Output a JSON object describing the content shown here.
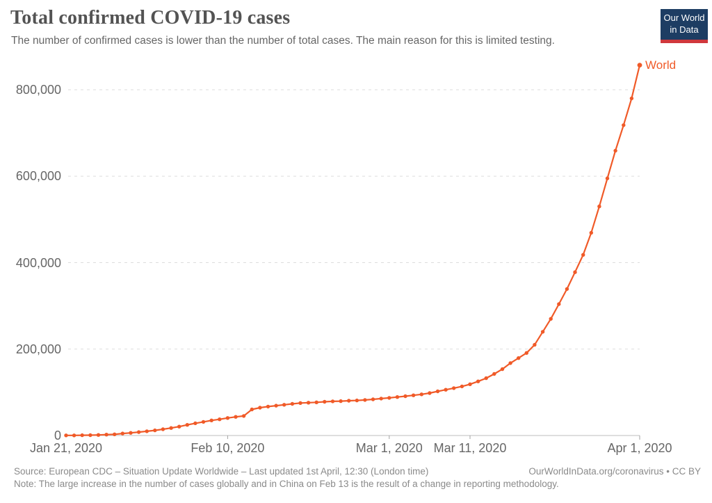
{
  "header": {
    "title": "Total confirmed COVID-19 cases",
    "subtitle": "The number of confirmed cases is lower than the number of total cases. The main reason for this is limited testing.",
    "logo": {
      "line1": "Our World",
      "line2": "in Data",
      "bg_color": "#1d3d63",
      "bar_color": "#d0383c"
    }
  },
  "chart_data": {
    "type": "line",
    "title": "Total confirmed COVID-19 cases",
    "xlabel": "",
    "ylabel": "",
    "ylim": [
      0,
      800000
    ],
    "grid": true,
    "legend_position": "end-of-line",
    "y_ticks": [
      {
        "value": 0,
        "label": "0"
      },
      {
        "value": 200000,
        "label": "200,000"
      },
      {
        "value": 400000,
        "label": "400,000"
      },
      {
        "value": 600000,
        "label": "600,000"
      },
      {
        "value": 800000,
        "label": "800,000"
      }
    ],
    "x_ticks": [
      {
        "index": 0,
        "label": "Jan 21, 2020"
      },
      {
        "index": 20,
        "label": "Feb 10, 2020"
      },
      {
        "index": 40,
        "label": "Mar 1, 2020"
      },
      {
        "index": 50,
        "label": "Mar 11, 2020"
      },
      {
        "index": 71,
        "label": "Apr 1, 2020"
      }
    ],
    "x": [
      "Jan 21",
      "Jan 22",
      "Jan 23",
      "Jan 24",
      "Jan 25",
      "Jan 26",
      "Jan 27",
      "Jan 28",
      "Jan 29",
      "Jan 30",
      "Jan 31",
      "Feb 1",
      "Feb 2",
      "Feb 3",
      "Feb 4",
      "Feb 5",
      "Feb 6",
      "Feb 7",
      "Feb 8",
      "Feb 9",
      "Feb 10",
      "Feb 11",
      "Feb 12",
      "Feb 13",
      "Feb 14",
      "Feb 15",
      "Feb 16",
      "Feb 17",
      "Feb 18",
      "Feb 19",
      "Feb 20",
      "Feb 21",
      "Feb 22",
      "Feb 23",
      "Feb 24",
      "Feb 25",
      "Feb 26",
      "Feb 27",
      "Feb 28",
      "Feb 29",
      "Mar 1",
      "Mar 2",
      "Mar 3",
      "Mar 4",
      "Mar 5",
      "Mar 6",
      "Mar 7",
      "Mar 8",
      "Mar 9",
      "Mar 10",
      "Mar 11",
      "Mar 12",
      "Mar 13",
      "Mar 14",
      "Mar 15",
      "Mar 16",
      "Mar 17",
      "Mar 18",
      "Mar 19",
      "Mar 20",
      "Mar 21",
      "Mar 22",
      "Mar 23",
      "Mar 24",
      "Mar 25",
      "Mar 26",
      "Mar 27",
      "Mar 28",
      "Mar 29",
      "Mar 30",
      "Mar 31",
      "Apr 1"
    ],
    "series": [
      {
        "name": "World",
        "color": "#f05a28",
        "values": [
          282,
          314,
          581,
          846,
          1320,
          2014,
          2798,
          4593,
          6065,
          7818,
          9826,
          11953,
          14557,
          17391,
          20630,
          24554,
          28276,
          31481,
          34886,
          37558,
          40554,
          43103,
          45171,
          60330,
          64437,
          66885,
          69030,
          71224,
          73260,
          75136,
          75937,
          76834,
          78076,
          78983,
          79590,
          80423,
          81109,
          82294,
          83774,
          85403,
          87137,
          88948,
          90869,
          93090,
          95324,
          98192,
          102133,
          105836,
          109577,
          113702,
          118628,
          125260,
          132567,
          142534,
          153523,
          167515,
          179112,
          191127,
          209839,
          240000,
          270000,
          304000,
          339000,
          378000,
          418000,
          469000,
          530000,
          595000,
          659000,
          718000,
          780000,
          857000
        ]
      }
    ]
  },
  "footer": {
    "source": "Source: European CDC – Situation Update Worldwide – Last updated 1st April, 12:30 (London time)",
    "attribution": "OurWorldInData.org/coronavirus • CC BY",
    "note": "Note: The large increase in the number of cases globally and in China on Feb 13 is the result of a change in reporting methodology."
  }
}
